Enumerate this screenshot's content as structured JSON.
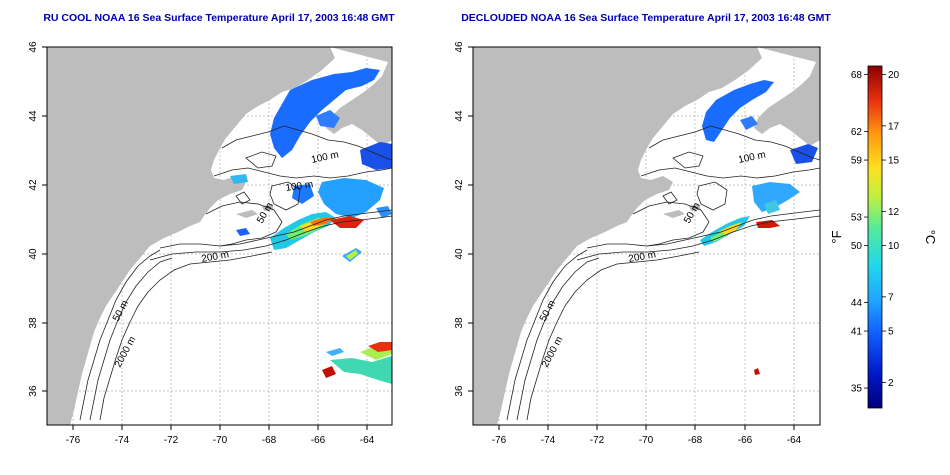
{
  "panels": [
    {
      "title": "RU COOL NOAA 16 Sea Surface Temperature April 17, 2003 16:48 GMT",
      "contour_labels": [
        "100 m",
        "100 m",
        "50 m",
        "200 m",
        "50 m",
        "2000 m"
      ]
    },
    {
      "title": "DECLOUDED NOAA 16 Sea Surface Temperature April 17, 2003 16:48 GMT",
      "contour_labels": [
        "100 m",
        "50 m",
        "200 m",
        "50 m",
        "2000 m"
      ]
    }
  ],
  "axes": {
    "lon_ticks": [
      "-76",
      "-74",
      "-72",
      "-70",
      "-68",
      "-66",
      "-64"
    ],
    "lat_ticks": [
      "36",
      "38",
      "40",
      "42",
      "44",
      "46"
    ],
    "lon_range": [
      -77,
      -63
    ],
    "lat_range": [
      35,
      46
    ]
  },
  "colorbar": {
    "f_label": "°F",
    "c_label": "°C",
    "f_ticks": [
      {
        "label": "68",
        "value": 68
      },
      {
        "label": "62",
        "value": 62
      },
      {
        "label": "59",
        "value": 59
      },
      {
        "label": "53",
        "value": 53
      },
      {
        "label": "50",
        "value": 50
      },
      {
        "label": "44",
        "value": 44
      },
      {
        "label": "41",
        "value": 41
      },
      {
        "label": "35",
        "value": 35
      }
    ],
    "c_ticks": [
      {
        "label": "20",
        "value": 20
      },
      {
        "label": "17",
        "value": 17
      },
      {
        "label": "15",
        "value": 15
      },
      {
        "label": "12",
        "value": 12
      },
      {
        "label": "10",
        "value": 10
      },
      {
        "label": "7",
        "value": 7
      },
      {
        "label": "5",
        "value": 5
      },
      {
        "label": "2",
        "value": 2
      }
    ],
    "colors": [
      "#00007a",
      "#0030e0",
      "#1a80ff",
      "#22d0f0",
      "#40e890",
      "#b8f040",
      "#ffe020",
      "#ff9010",
      "#e83010",
      "#8b0000"
    ],
    "c_range": [
      0.5,
      20.5
    ]
  },
  "style": {
    "land_color": "#bdbdbd",
    "title_color": "#0000b0"
  }
}
